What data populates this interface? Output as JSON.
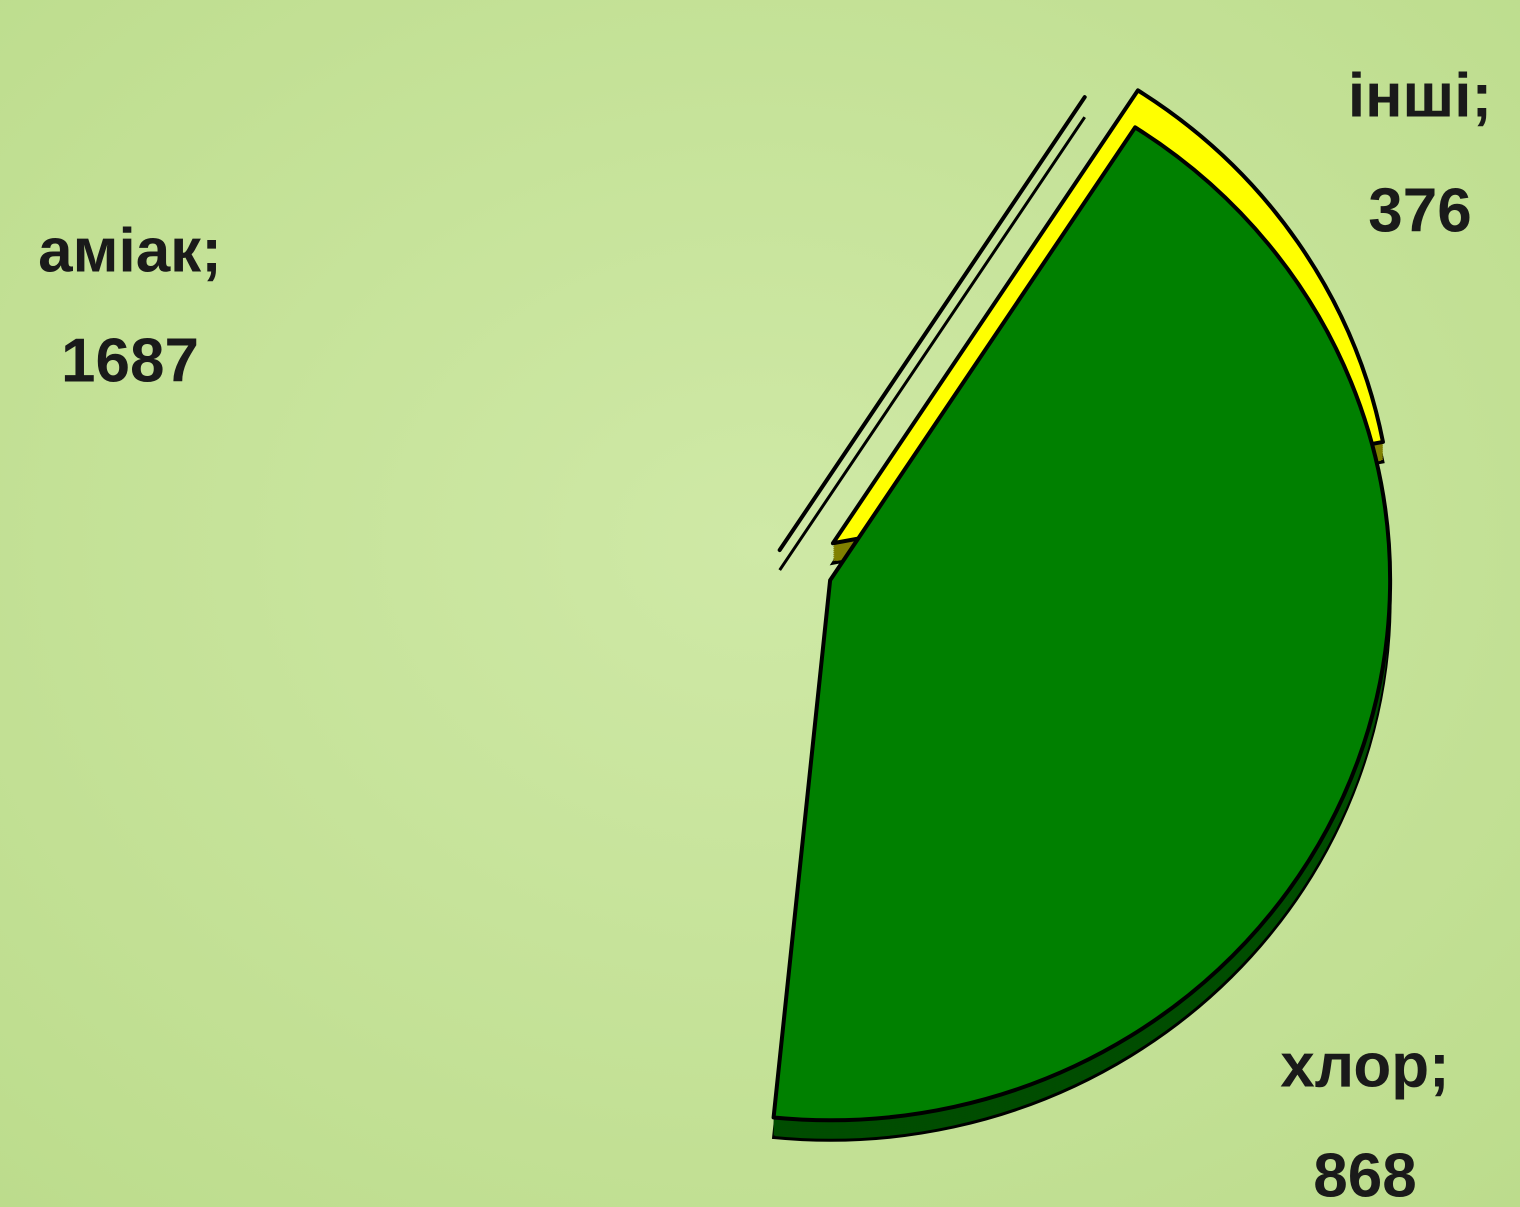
{
  "chart_data": {
    "type": "pie",
    "categories": [
      "інші;",
      "хлор;",
      "аміак;"
    ],
    "values": [
      376,
      868,
      1687
    ],
    "colors": [
      "#ffff00",
      "#008000",
      "#ff0000"
    ],
    "side_colors": [
      "#808000",
      "#004d00",
      "#800000"
    ]
  }
}
